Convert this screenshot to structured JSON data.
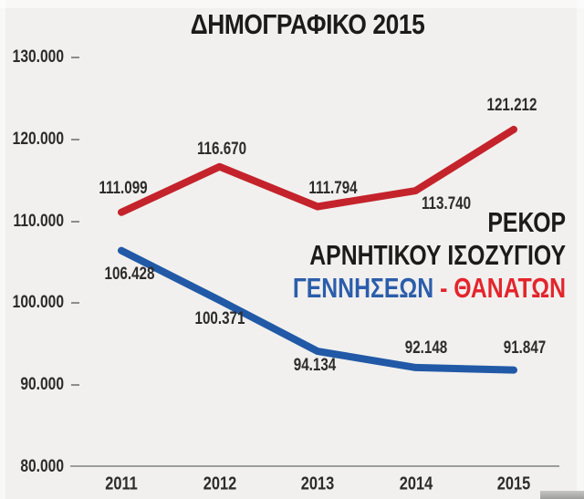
{
  "page": {
    "background": "#f1f0ee"
  },
  "chart_data": {
    "type": "line",
    "title": "ΔΗΜΟΓΡΑΦΙΚΟ 2015",
    "categories": [
      "2011",
      "2012",
      "2013",
      "2014",
      "2015"
    ],
    "series": [
      {
        "key": "deaths",
        "name": "ΘΑΝΑΤΩΝ",
        "color": "#c4232b",
        "values": [
          111099,
          116670,
          111794,
          113740,
          121212
        ],
        "labels": [
          "111.099",
          "116.670",
          "111.794",
          "113.740",
          "121.212"
        ]
      },
      {
        "key": "births",
        "name": "ΓΕΝΝΗΣΕΩΝ",
        "color": "#2159a7",
        "values": [
          106428,
          100371,
          94134,
          92148,
          91847
        ],
        "labels": [
          "106.428",
          "100.371",
          "94.134",
          "92.148",
          "91.847"
        ]
      }
    ],
    "y_ticks": [
      "130.000",
      "120.000",
      "110.000",
      "100.000",
      "90.000",
      "80.000"
    ],
    "ylim": [
      80000,
      130000
    ],
    "xlabel": "",
    "ylabel": "",
    "grid": false,
    "legend": "none",
    "annotation": {
      "line1": "ΡΕΚΟΡ",
      "line2": "ΑΡΝΗΤΙΚΟΥ ΙΣΟΖΥΓΙΟΥ",
      "line3_blue": "ΓΕΝΝΗΣΕΩΝ",
      "line3_sep": "-",
      "line3_red": "ΘΑΝΑΤΩΝ",
      "blue_color": "#2b5dab",
      "red_color": "#e4242c"
    }
  }
}
